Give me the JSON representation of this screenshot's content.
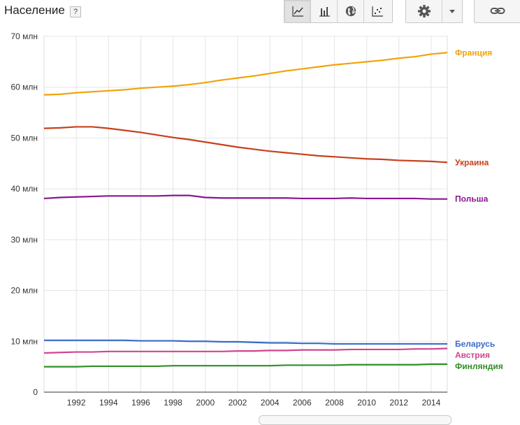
{
  "header": {
    "title": "Население",
    "help": "?"
  },
  "toolbar": {
    "views": [
      {
        "icon": "line-chart-icon",
        "active": true
      },
      {
        "icon": "bar-chart-icon",
        "active": false
      },
      {
        "icon": "globe-map-icon",
        "active": false
      },
      {
        "icon": "scatter-chart-icon",
        "active": false
      }
    ],
    "settings_icon": "gear-icon",
    "dropdown_icon": "caret-down-icon",
    "link_icon": "link-icon"
  },
  "chart_data": {
    "type": "line",
    "ylim": [
      0,
      70
    ],
    "xlim": [
      1990,
      2015
    ],
    "yticks": [
      0,
      10,
      20,
      30,
      40,
      50,
      60,
      70
    ],
    "ytick_labels": [
      "0",
      "10 млн",
      "20 млн",
      "30 млн",
      "40 млн",
      "50 млн",
      "60 млн",
      "70 млн"
    ],
    "xticks": [
      1992,
      1994,
      1996,
      1998,
      2000,
      2002,
      2004,
      2006,
      2008,
      2010,
      2012,
      2014
    ],
    "xtick_labels": [
      "1992",
      "1994",
      "1996",
      "1998",
      "2000",
      "2002",
      "2004",
      "2006",
      "2008",
      "2010",
      "2012",
      "2014"
    ],
    "grid": true,
    "legend": "right",
    "x": [
      1990,
      1991,
      1992,
      1993,
      1994,
      1995,
      1996,
      1997,
      1998,
      1999,
      2000,
      2001,
      2002,
      2003,
      2004,
      2005,
      2006,
      2007,
      2008,
      2009,
      2010,
      2011,
      2012,
      2013,
      2014,
      2015
    ],
    "series": [
      {
        "name": "Франция",
        "color": "#f0a30a",
        "values": [
          58.5,
          58.6,
          58.9,
          59.1,
          59.3,
          59.5,
          59.8,
          60.0,
          60.2,
          60.5,
          60.9,
          61.4,
          61.8,
          62.2,
          62.7,
          63.2,
          63.6,
          64.0,
          64.4,
          64.7,
          65.0,
          65.3,
          65.7,
          66.0,
          66.5,
          66.8
        ]
      },
      {
        "name": "Украина",
        "color": "#c8401a",
        "values": [
          51.9,
          52.0,
          52.2,
          52.2,
          51.9,
          51.5,
          51.1,
          50.6,
          50.1,
          49.7,
          49.2,
          48.7,
          48.2,
          47.8,
          47.4,
          47.1,
          46.8,
          46.5,
          46.3,
          46.1,
          45.9,
          45.8,
          45.6,
          45.5,
          45.4,
          45.2
        ]
      },
      {
        "name": "Польша",
        "color": "#8a168f",
        "values": [
          38.1,
          38.3,
          38.4,
          38.5,
          38.6,
          38.6,
          38.6,
          38.6,
          38.7,
          38.7,
          38.3,
          38.2,
          38.2,
          38.2,
          38.2,
          38.2,
          38.1,
          38.1,
          38.1,
          38.2,
          38.1,
          38.1,
          38.1,
          38.1,
          38.0,
          38.0
        ]
      },
      {
        "name": "Беларусь",
        "color": "#3a6cc9",
        "values": [
          10.2,
          10.2,
          10.2,
          10.2,
          10.2,
          10.2,
          10.1,
          10.1,
          10.1,
          10.0,
          10.0,
          9.9,
          9.9,
          9.8,
          9.7,
          9.7,
          9.6,
          9.6,
          9.5,
          9.5,
          9.5,
          9.5,
          9.5,
          9.5,
          9.5,
          9.5
        ]
      },
      {
        "name": "Австрия",
        "color": "#d0458f",
        "values": [
          7.7,
          7.8,
          7.9,
          7.9,
          8.0,
          8.0,
          8.0,
          8.0,
          8.0,
          8.0,
          8.0,
          8.0,
          8.1,
          8.1,
          8.2,
          8.2,
          8.3,
          8.3,
          8.3,
          8.4,
          8.4,
          8.4,
          8.4,
          8.5,
          8.5,
          8.6
        ]
      },
      {
        "name": "Финляндия",
        "color": "#2f8f25",
        "values": [
          5.0,
          5.0,
          5.0,
          5.1,
          5.1,
          5.1,
          5.1,
          5.1,
          5.2,
          5.2,
          5.2,
          5.2,
          5.2,
          5.2,
          5.2,
          5.3,
          5.3,
          5.3,
          5.3,
          5.4,
          5.4,
          5.4,
          5.4,
          5.4,
          5.5,
          5.5
        ]
      }
    ]
  }
}
